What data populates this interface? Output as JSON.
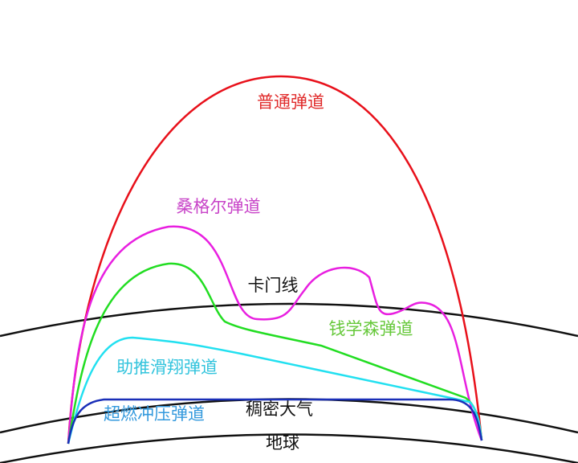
{
  "labels": {
    "normal": "普通弹道",
    "sanger": "桑格尔弹道",
    "karman": "卡门线",
    "qian": "钱学森弹道",
    "boost_glide": "助推滑翔弹道",
    "scramjet": "超燃冲压弹道",
    "dense_atmosphere": "稠密大气",
    "earth": "地球"
  }
}
